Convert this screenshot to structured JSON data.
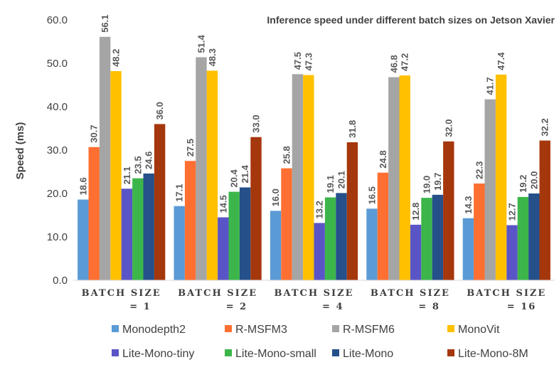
{
  "chart_data": {
    "type": "bar",
    "title": "Inference speed under different batch sizes on Jetson Xavier",
    "xlabel": "",
    "ylabel": "Speed (ms)",
    "ylim": [
      0,
      60
    ],
    "yticks": [
      "0.0",
      "10.0",
      "20.0",
      "30.0",
      "40.0",
      "50.0",
      "60.0"
    ],
    "grid": false,
    "legend_position": "bottom",
    "categories": [
      [
        "BATCH SIZE",
        "= 1"
      ],
      [
        "BATCH SIZE",
        "= 2"
      ],
      [
        "BATCH SIZE",
        "= 4"
      ],
      [
        "BATCH SIZE",
        "= 8"
      ],
      [
        "BATCH SIZE",
        "= 16"
      ]
    ],
    "series": [
      {
        "name": "Monodepth2",
        "color": "#5B9BD5",
        "values": [
          18.6,
          17.1,
          16.0,
          16.5,
          14.3
        ],
        "labels": [
          "18.6",
          "17.1",
          "16.0",
          "16.5",
          "14.3"
        ]
      },
      {
        "name": "R-MSFM3",
        "color": "#FF6F31",
        "values": [
          30.7,
          27.5,
          25.8,
          24.8,
          22.3
        ],
        "labels": [
          "30.7",
          "27.5",
          "25.8",
          "24.8",
          "22.3"
        ]
      },
      {
        "name": "R-MSFM6",
        "color": "#A5A5A5",
        "values": [
          56.1,
          51.4,
          47.5,
          46.8,
          41.7
        ],
        "labels": [
          "56.1",
          "51.4",
          "47.5",
          "46.8",
          "41.7"
        ]
      },
      {
        "name": "MonoVit",
        "color": "#FFC000",
        "values": [
          48.2,
          48.3,
          47.3,
          47.2,
          47.4
        ],
        "labels": [
          "48.2",
          "48.3",
          "47.3",
          "47.2",
          "47.4"
        ]
      },
      {
        "name": "Lite-Mono-tiny",
        "color": "#5A55C6",
        "values": [
          21.1,
          14.5,
          13.2,
          12.8,
          12.7
        ],
        "labels": [
          "21.1",
          "14.5",
          "13.2",
          "12.8",
          "12.7"
        ]
      },
      {
        "name": "Lite-Mono-small",
        "color": "#3CB64A",
        "values": [
          23.5,
          20.4,
          19.1,
          19.0,
          19.2
        ],
        "labels": [
          "23.5",
          "20.4",
          "19.1",
          "19.0",
          "19.2"
        ]
      },
      {
        "name": "Lite-Mono",
        "color": "#25508A",
        "values": [
          24.6,
          21.4,
          20.1,
          19.7,
          20.0
        ],
        "labels": [
          "24.6",
          "21.4",
          "20.1",
          "19.7",
          "20.0"
        ]
      },
      {
        "name": "Lite-Mono-8M",
        "color": "#A5370C",
        "values": [
          36.0,
          33.0,
          31.8,
          32.0,
          32.2
        ],
        "labels": [
          "36.0",
          "33.0",
          "31.8",
          "32.0",
          "32.2"
        ]
      }
    ]
  }
}
